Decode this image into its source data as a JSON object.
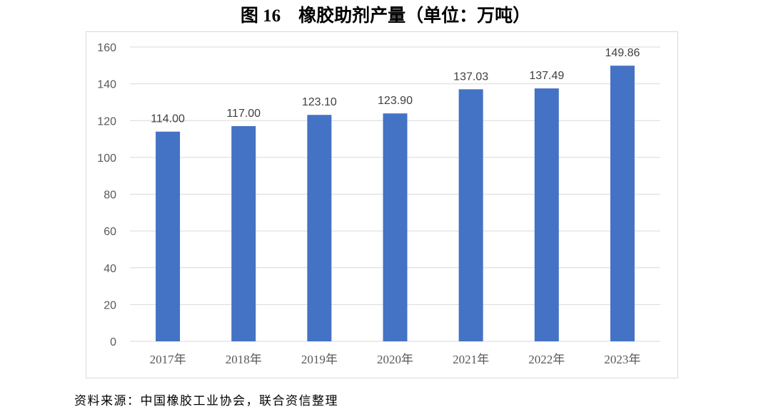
{
  "title": "图 16　橡胶助剂产量（单位：万吨）",
  "source": "资料来源：中国橡胶工业协会，联合资信整理",
  "chart_data": {
    "type": "bar",
    "title": "图 16　橡胶助剂产量（单位：万吨）",
    "categories": [
      "2017年",
      "2018年",
      "2019年",
      "2020年",
      "2021年",
      "2022年",
      "2023年"
    ],
    "values": [
      114.0,
      117.0,
      123.1,
      123.9,
      137.03,
      137.49,
      149.86
    ],
    "data_labels": [
      "114.00",
      "117.00",
      "123.10",
      "123.90",
      "137.03",
      "137.49",
      "149.86"
    ],
    "ylim": [
      0,
      160
    ],
    "yticks": [
      0,
      20,
      40,
      60,
      80,
      100,
      120,
      140,
      160
    ],
    "xlabel": "",
    "ylabel": "",
    "grid": true,
    "legend": "none",
    "bar_color": "#4472c4",
    "grid_color": "#d9d9d9"
  }
}
